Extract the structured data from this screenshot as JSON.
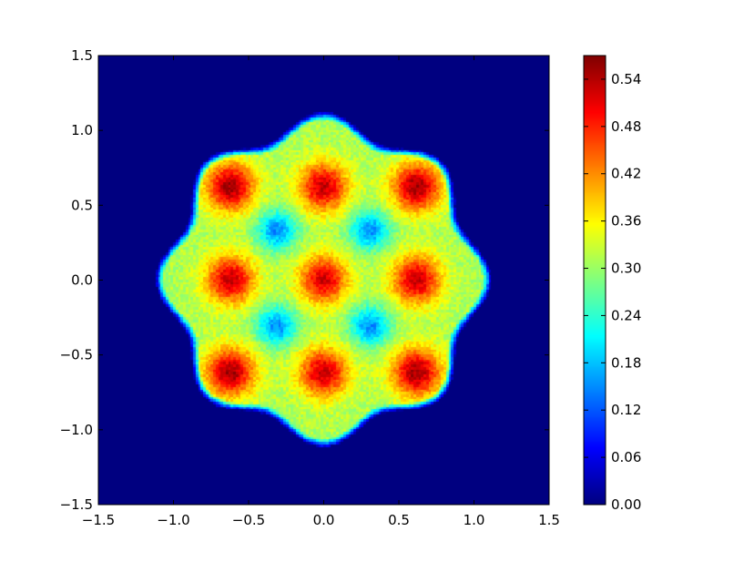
{
  "chart_data": {
    "type": "heatmap",
    "title": "",
    "xlabel": "",
    "ylabel": "",
    "xlim": [
      -1.5,
      1.5
    ],
    "ylim": [
      -1.5,
      1.5
    ],
    "x_ticks": [
      "−1.5",
      "−1.0",
      "−0.5",
      "0.0",
      "0.5",
      "1.0",
      "1.5"
    ],
    "y_ticks": [
      "−1.5",
      "−1.0",
      "−0.5",
      "0.0",
      "0.5",
      "1.0",
      "1.5"
    ],
    "x_tick_values": [
      -1.5,
      -1.0,
      -0.5,
      0.0,
      0.5,
      1.0,
      1.5
    ],
    "y_tick_values": [
      -1.5,
      -1.0,
      -0.5,
      0.0,
      0.5,
      1.0,
      1.5
    ],
    "colormap": "jet",
    "colorbar": {
      "vmin": 0.0,
      "vmax": 0.57,
      "ticks": [
        "0.00",
        "0.06",
        "0.12",
        "0.18",
        "0.24",
        "0.30",
        "0.36",
        "0.42",
        "0.48",
        "0.54"
      ],
      "tick_values": [
        0.0,
        0.06,
        0.12,
        0.18,
        0.24,
        0.3,
        0.36,
        0.42,
        0.48,
        0.54
      ]
    },
    "support_radius": 1.05,
    "peaks": [
      {
        "x": -0.62,
        "y": 0.62,
        "value": 0.55
      },
      {
        "x": 0.0,
        "y": 0.62,
        "value": 0.53
      },
      {
        "x": 0.62,
        "y": 0.62,
        "value": 0.55
      },
      {
        "x": -0.62,
        "y": 0.0,
        "value": 0.53
      },
      {
        "x": 0.0,
        "y": 0.0,
        "value": 0.52
      },
      {
        "x": 0.62,
        "y": 0.0,
        "value": 0.53
      },
      {
        "x": -0.62,
        "y": -0.62,
        "value": 0.55
      },
      {
        "x": 0.0,
        "y": -0.62,
        "value": 0.53
      },
      {
        "x": 0.62,
        "y": -0.62,
        "value": 0.55
      }
    ],
    "troughs": [
      {
        "x": -0.31,
        "y": 0.33,
        "value": 0.15
      },
      {
        "x": 0.31,
        "y": 0.33,
        "value": 0.15
      },
      {
        "x": -0.31,
        "y": -0.31,
        "value": 0.15
      },
      {
        "x": 0.31,
        "y": -0.31,
        "value": 0.15
      }
    ],
    "background_value": 0.0
  }
}
